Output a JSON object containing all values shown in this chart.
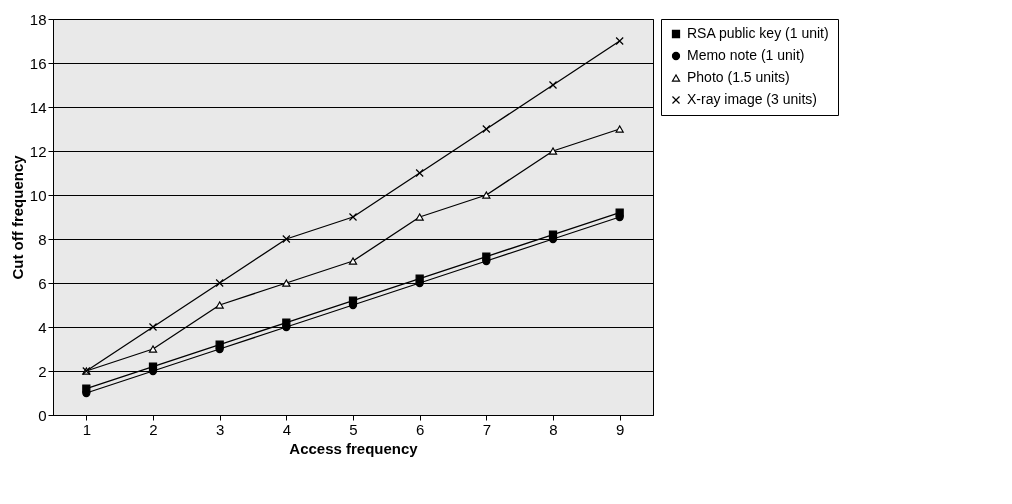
{
  "chart_data": {
    "type": "line",
    "xlabel": "Access frequency",
    "ylabel": "Cut off frequency",
    "categories": [
      "1",
      "2",
      "3",
      "4",
      "5",
      "6",
      "7",
      "8",
      "9"
    ],
    "series": [
      {
        "name": "RSA public key (1 unit)",
        "color": "#000000",
        "marker": "square",
        "values": [
          1.2,
          2.2,
          3.2,
          4.2,
          5.2,
          6.2,
          7.2,
          8.2,
          9.2
        ]
      },
      {
        "name": "Memo note (1 unit)",
        "color": "#000000",
        "marker": "circle",
        "values": [
          1,
          2,
          3,
          4,
          5,
          6,
          7,
          8,
          9
        ]
      },
      {
        "name": "Photo (1.5 units)",
        "color": "#000000",
        "marker": "triangle",
        "values": [
          2,
          3,
          5,
          6,
          7,
          9,
          10,
          12,
          13
        ]
      },
      {
        "name": "X-ray image (3 units)",
        "color": "#000000",
        "marker": "cross",
        "values": [
          2,
          4,
          6,
          8,
          9,
          11,
          13,
          15,
          17
        ]
      }
    ],
    "ylim": [
      0,
      18
    ],
    "yticks": [
      0,
      2,
      4,
      6,
      8,
      10,
      12,
      14,
      16,
      18
    ],
    "grid": "y",
    "legend": "right",
    "line_style": "solid"
  }
}
